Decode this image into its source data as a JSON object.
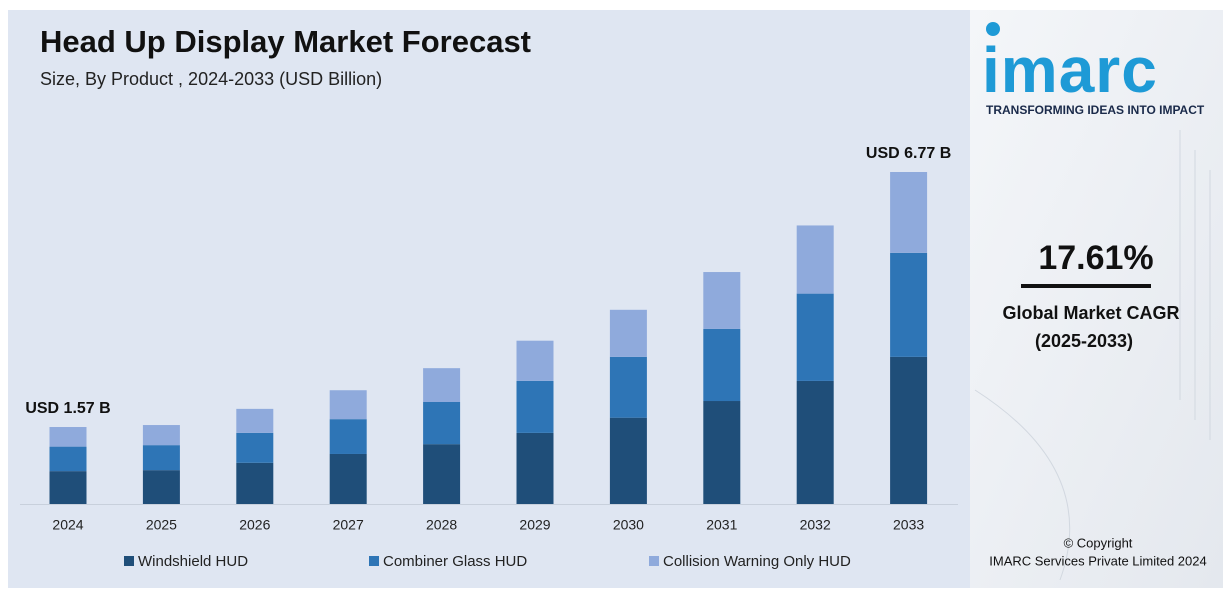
{
  "chart_data": {
    "type": "stacked-bar",
    "title": "Head Up Display Market Forecast",
    "subtitle": "Size, By Product , 2024-2033 (USD Billion)",
    "categories": [
      "2024",
      "2025",
      "2026",
      "2027",
      "2028",
      "2029",
      "2030",
      "2031",
      "2032",
      "2033"
    ],
    "series": [
      {
        "name": "Windshield HUD",
        "color": "#1f4e79",
        "values": [
          0.67,
          0.69,
          0.84,
          1.02,
          1.22,
          1.45,
          1.76,
          2.1,
          2.51,
          3.0
        ]
      },
      {
        "name": "Combiner Glass HUD",
        "color": "#2e75b6",
        "values": [
          0.5,
          0.51,
          0.61,
          0.71,
          0.86,
          1.06,
          1.24,
          1.47,
          1.78,
          2.12
        ]
      },
      {
        "name": "Collision Warning Only HUD",
        "color": "#8faadc",
        "values": [
          0.4,
          0.41,
          0.49,
          0.59,
          0.69,
          0.82,
          0.96,
          1.16,
          1.39,
          1.65
        ]
      }
    ],
    "annotations": [
      "USD 1.57 B",
      "USD 6.77 B"
    ],
    "legend": "bottom"
  },
  "side_panel": {
    "logo": "imarc",
    "tagline": "TRANSFORMING IDEAS INTO IMPACT",
    "cagr": "17.61%",
    "cagr_label": "Global Market CAGR",
    "cagr_period": "(2025-2033)",
    "copyright": "© Copyright",
    "company": "IMARC Services Private Limited 2024"
  }
}
